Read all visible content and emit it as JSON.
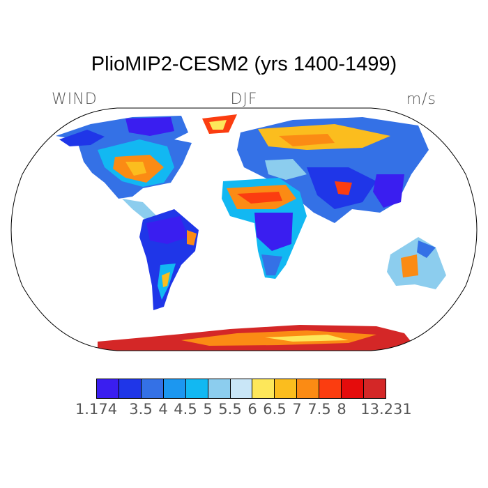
{
  "title": "PlioMIP2-CESM2 (yrs 1400-1499)",
  "subtitle_left": "WIND",
  "subtitle_center": "DJF",
  "subtitle_right": "m/s",
  "colorbar": {
    "colors": [
      "#3a1ef0",
      "#1f36e8",
      "#3471e6",
      "#1c97f0",
      "#12b8f2",
      "#8ccdee",
      "#c9e6f7",
      "#fde75a",
      "#fbbd1e",
      "#fb8b14",
      "#fb3d10",
      "#e50c0c",
      "#d42727"
    ],
    "labels": [
      "1.174",
      "3.5",
      "4",
      "4.5",
      "5",
      "5.5",
      "6",
      "6.5",
      "7",
      "7.5",
      "8",
      "13.231"
    ]
  },
  "map": {
    "projection": "robinson",
    "ocean_color": "#ffffff",
    "outline_color": "#000000"
  }
}
